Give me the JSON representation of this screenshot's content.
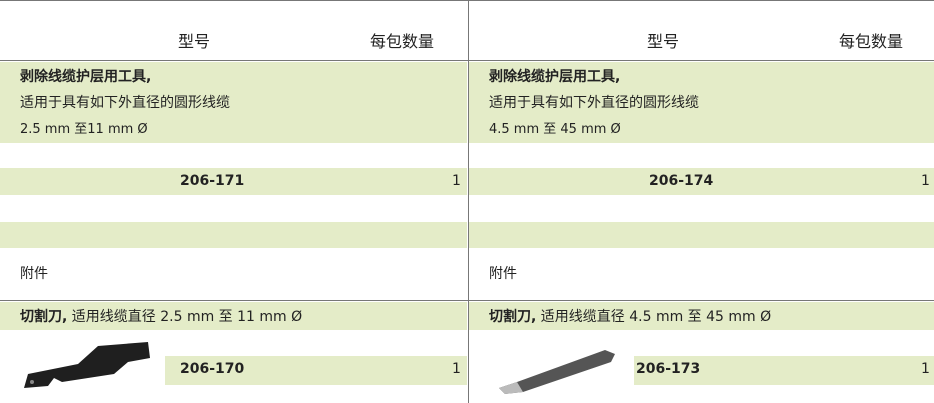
{
  "header": {
    "model": "型号",
    "qty": "每包数量"
  },
  "columns": [
    {
      "product": {
        "title": "剥除线缆护层用工具,",
        "line2": "适用于具有如下外直径的圆形线缆",
        "line3": "2.5 mm 至11 mm Ø",
        "item": "206-171",
        "qty": 1
      },
      "accessory": {
        "heading": "附件",
        "name": "切割刀,",
        "desc": " 适用线缆直径 2.5 mm 至 11 mm Ø",
        "item": "206-170",
        "qty": 1
      }
    },
    {
      "product": {
        "title": "剥除线缆护层用工具,",
        "line2": "适用于具有如下外直径的圆形线缆",
        "line3": "4.5 mm 至 45 mm Ø",
        "item": "206-174",
        "qty": 1
      },
      "accessory": {
        "heading": "附件",
        "name": "切割刀,",
        "desc": " 适用线缆直径 4.5 mm 至 45 mm Ø",
        "item": "206-173",
        "qty": 1
      }
    }
  ]
}
